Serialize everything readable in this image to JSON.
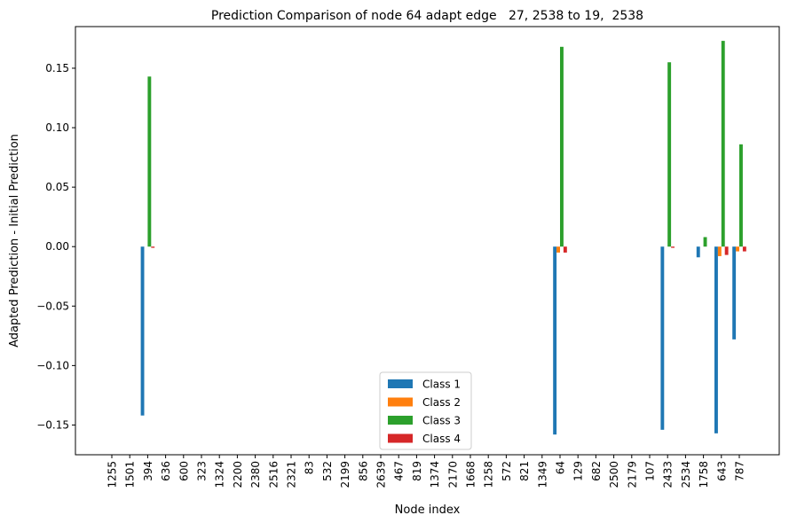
{
  "chart_data": {
    "type": "bar",
    "title": "Prediction Comparison of node 64 adapt edge   27, 2538 to 19,  2538",
    "xlabel": "Node index",
    "ylabel": "Adapted Prediction - Initial Prediction",
    "ylim": [
      -0.175,
      0.185
    ],
    "yticks": [
      -0.15,
      -0.1,
      -0.05,
      0.0,
      0.05,
      0.1,
      0.15
    ],
    "ytick_labels": [
      "−0.15",
      "−0.10",
      "−0.05",
      "0.00",
      "0.05",
      "0.10",
      "0.15"
    ],
    "grid": false,
    "legend_position": "lower-center",
    "categories": [
      "1255",
      "1501",
      "394",
      "636",
      "600",
      "323",
      "1324",
      "2200",
      "2380",
      "2516",
      "2321",
      "83",
      "532",
      "2199",
      "856",
      "2639",
      "467",
      "819",
      "1374",
      "2170",
      "1668",
      "1258",
      "572",
      "821",
      "1349",
      "64",
      "129",
      "682",
      "2500",
      "2179",
      "107",
      "2433",
      "2534",
      "1758",
      "643",
      "787"
    ],
    "series": [
      {
        "name": "Class 1",
        "color": "#1f77b4",
        "values": [
          0,
          0,
          -0.142,
          0,
          0,
          0,
          0,
          0,
          0,
          0,
          0,
          0,
          0,
          0,
          0,
          0,
          0,
          0,
          0,
          0,
          0,
          0,
          0,
          0,
          0,
          -0.158,
          0,
          0,
          0,
          0,
          0,
          -0.154,
          0,
          -0.009,
          -0.157,
          -0.078
        ]
      },
      {
        "name": "Class 2",
        "color": "#ff7f0e",
        "values": [
          0,
          0,
          0,
          0,
          0,
          0,
          0,
          0,
          0,
          0,
          0,
          0,
          0,
          0,
          0,
          0,
          0,
          0,
          0,
          0,
          0,
          0,
          0,
          0,
          0,
          -0.005,
          0,
          0,
          0,
          0,
          0,
          0,
          0,
          0,
          -0.008,
          -0.004
        ]
      },
      {
        "name": "Class 3",
        "color": "#2ca02c",
        "values": [
          0,
          0,
          0.143,
          0,
          0,
          0,
          0,
          0,
          0,
          0,
          0,
          0,
          0,
          0,
          0,
          0,
          0,
          0,
          0,
          0,
          0,
          0,
          0,
          0,
          0,
          0.168,
          0,
          0,
          0,
          0,
          0,
          0.155,
          0,
          0.008,
          0.173,
          0.086
        ]
      },
      {
        "name": "Class 4",
        "color": "#d62728",
        "values": [
          0,
          0,
          -0.001,
          0,
          0,
          0,
          0,
          0,
          0,
          0,
          0,
          0,
          0,
          0,
          0,
          0,
          0,
          0,
          0,
          0,
          0,
          0,
          0,
          0,
          0,
          -0.005,
          0,
          0,
          0,
          0,
          0,
          -0.001,
          0,
          0,
          -0.007,
          -0.004
        ]
      }
    ]
  }
}
